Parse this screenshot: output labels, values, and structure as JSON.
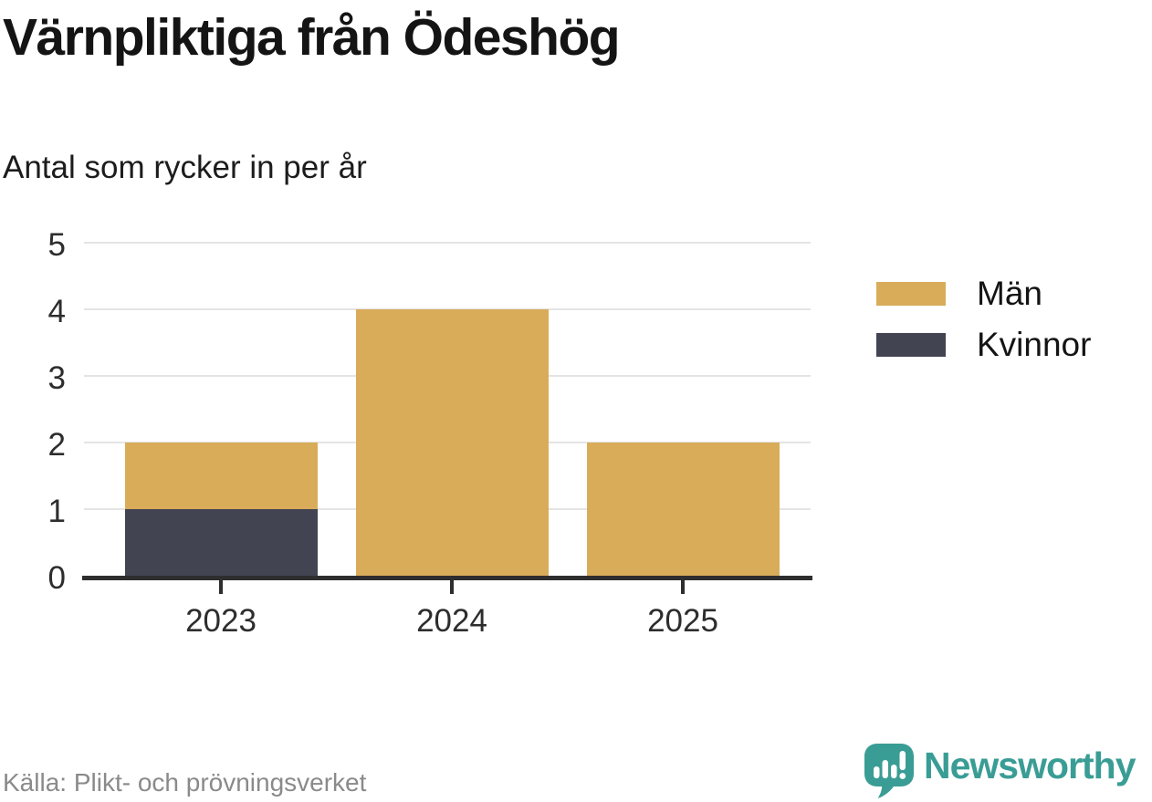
{
  "header": {
    "title": "Värnpliktiga från Ödeshög",
    "subtitle": "Antal som rycker in per år"
  },
  "footer": {
    "source": "Källa: Plikt- och prövningsverket",
    "brand_name": "Newsworthy"
  },
  "colors": {
    "men": "#d9ac5a",
    "women": "#434452",
    "grid": "#e4e4e4",
    "axis": "#2e2e2e",
    "tick_label": "#2d2d2d",
    "source_text": "#8a8a8a",
    "brand_teal": "#3a9d95",
    "title_text": "#141414"
  },
  "legend": {
    "items": [
      {
        "label": "Män",
        "color": "#d9ac5a"
      },
      {
        "label": "Kvinnor",
        "color": "#434452"
      }
    ]
  },
  "chart_data": {
    "type": "bar",
    "stacked": true,
    "title": "Värnpliktiga från Ödeshög",
    "subtitle": "Antal som rycker in per år",
    "categories": [
      "2023",
      "2024",
      "2025"
    ],
    "series": [
      {
        "name": "Män",
        "color": "#d9ac5a",
        "values": [
          1,
          4,
          2
        ]
      },
      {
        "name": "Kvinnor",
        "color": "#434452",
        "values": [
          1,
          0,
          0
        ]
      }
    ],
    "totals": [
      2,
      4,
      2
    ],
    "xlabel": "",
    "ylabel": "",
    "ylim": [
      0,
      5
    ],
    "yticks": [
      0,
      1,
      2,
      3,
      4,
      5
    ],
    "grid": true,
    "legend_position": "right",
    "source": "Källa: Plikt- och prövningsverket"
  }
}
